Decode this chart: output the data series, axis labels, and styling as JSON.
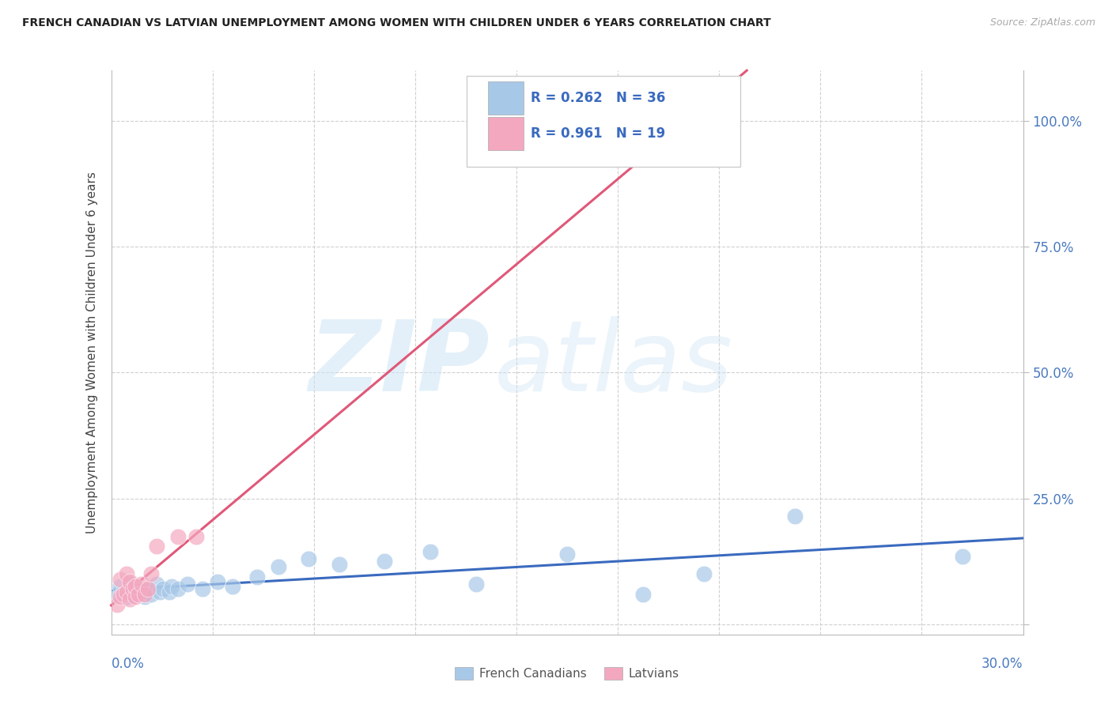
{
  "title": "FRENCH CANADIAN VS LATVIAN UNEMPLOYMENT AMONG WOMEN WITH CHILDREN UNDER 6 YEARS CORRELATION CHART",
  "source": "Source: ZipAtlas.com",
  "ylabel": "Unemployment Among Women with Children Under 6 years",
  "xlim": [
    0.0,
    0.3
  ],
  "ylim": [
    -0.02,
    1.1
  ],
  "yticks": [
    0.0,
    0.25,
    0.5,
    0.75,
    1.0
  ],
  "ytick_labels": [
    "",
    "25.0%",
    "50.0%",
    "75.0%",
    "100.0%"
  ],
  "watermark_zip": "ZIP",
  "watermark_atlas": "atlas",
  "legend_line1": "R = 0.262   N = 36",
  "legend_line2": "R = 0.961   N = 19",
  "blue_color": "#a8c8e8",
  "pink_color": "#f4a8c0",
  "blue_line_color": "#3a6abf",
  "pink_line_color": "#e05878",
  "blue_legend_color": "#3a6abf",
  "pink_legend_color": "#e05878",
  "french_canadians_x": [
    0.002,
    0.003,
    0.004,
    0.005,
    0.006,
    0.006,
    0.007,
    0.007,
    0.008,
    0.009,
    0.01,
    0.011,
    0.012,
    0.013,
    0.015,
    0.016,
    0.017,
    0.019,
    0.02,
    0.022,
    0.025,
    0.03,
    0.035,
    0.04,
    0.048,
    0.055,
    0.065,
    0.075,
    0.09,
    0.105,
    0.12,
    0.15,
    0.175,
    0.195,
    0.225,
    0.28
  ],
  "french_canadians_y": [
    0.06,
    0.075,
    0.065,
    0.055,
    0.07,
    0.08,
    0.065,
    0.058,
    0.075,
    0.06,
    0.068,
    0.055,
    0.072,
    0.06,
    0.08,
    0.065,
    0.07,
    0.065,
    0.075,
    0.07,
    0.08,
    0.07,
    0.085,
    0.075,
    0.095,
    0.115,
    0.13,
    0.12,
    0.125,
    0.145,
    0.08,
    0.14,
    0.06,
    0.1,
    0.215,
    0.135
  ],
  "latvians_x": [
    0.002,
    0.003,
    0.003,
    0.004,
    0.005,
    0.005,
    0.006,
    0.006,
    0.007,
    0.008,
    0.008,
    0.009,
    0.01,
    0.011,
    0.012,
    0.013,
    0.015,
    0.022,
    0.028
  ],
  "latvians_y": [
    0.04,
    0.055,
    0.09,
    0.06,
    0.065,
    0.1,
    0.05,
    0.085,
    0.07,
    0.055,
    0.075,
    0.06,
    0.08,
    0.06,
    0.07,
    0.1,
    0.155,
    0.175,
    0.175
  ]
}
